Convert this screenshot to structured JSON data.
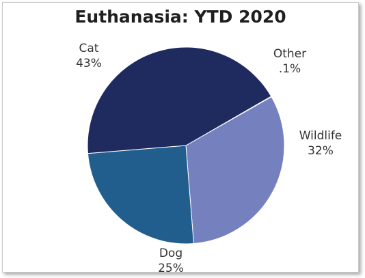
{
  "chart_data": {
    "type": "pie",
    "title": "Euthanasia: YTD 2020",
    "slices": [
      {
        "name": "Other",
        "value": 0.1,
        "label": ".1%",
        "color": "#8a92c8"
      },
      {
        "name": "Wildlife",
        "value": 32,
        "label": "32%",
        "color": "#7580be"
      },
      {
        "name": "Dog",
        "value": 25,
        "label": "25%",
        "color": "#215e8e"
      },
      {
        "name": "Cat",
        "value": 43,
        "label": "43%",
        "color": "#1f2a5e"
      }
    ],
    "start_angle_deg": -30,
    "direction": "clockwise",
    "legend": "none",
    "data_labels": "outside, category name and percent"
  }
}
